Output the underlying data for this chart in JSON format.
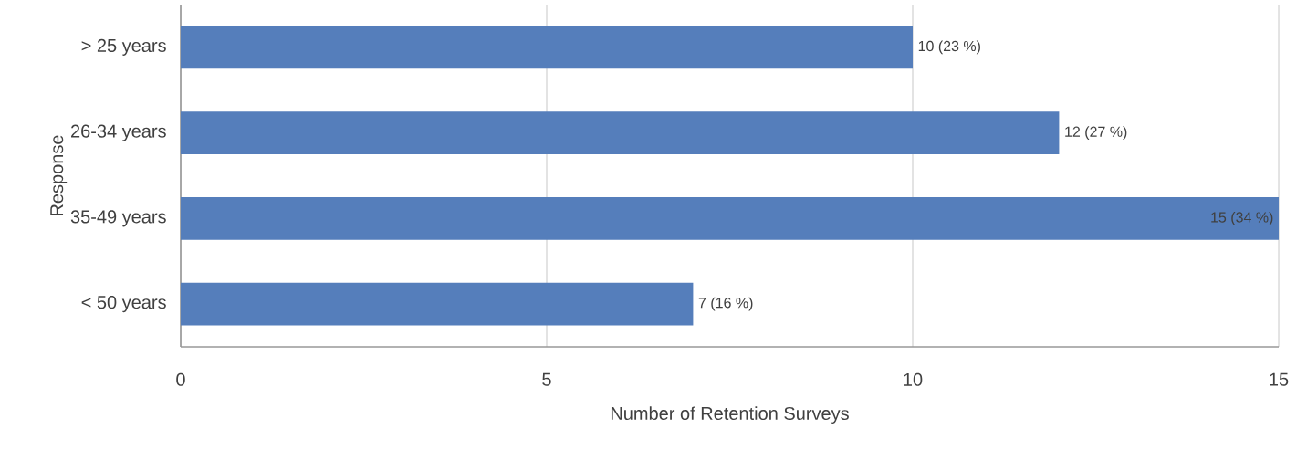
{
  "chart_data": {
    "type": "bar",
    "orientation": "horizontal",
    "categories": [
      "> 25 years",
      "26-34 years",
      "35-49 years",
      "< 50 years"
    ],
    "values": [
      10,
      12,
      15,
      7
    ],
    "value_labels": [
      "10 (23 %)",
      "12 (27 %)",
      "15 (34 %)",
      "7 (16 %)"
    ],
    "color": "#557ebb",
    "xlim": [
      0,
      15
    ],
    "xticks": [
      0,
      5,
      10,
      15
    ],
    "grid": "x",
    "xlabel": "Number of Retention Surveys",
    "ylabel": "Response"
  }
}
